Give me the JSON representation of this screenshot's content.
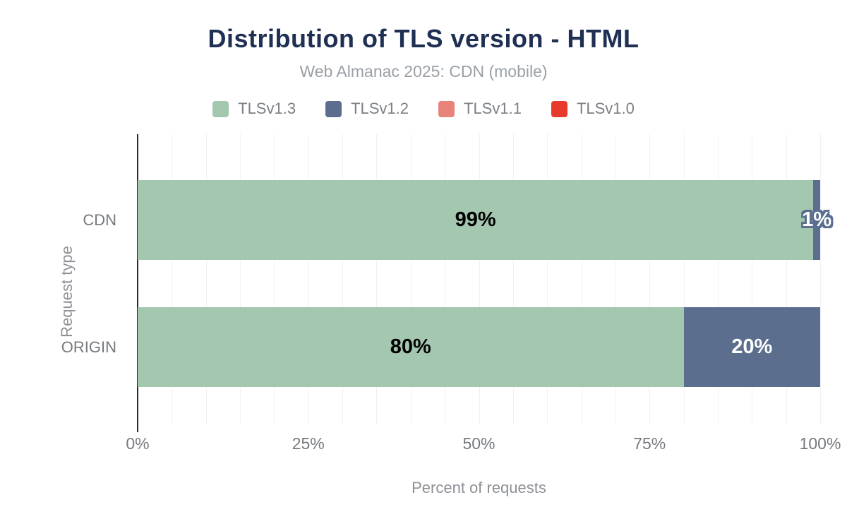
{
  "chart_data": {
    "type": "bar",
    "orientation": "horizontal",
    "stacked": true,
    "title": "Distribution of TLS version - HTML",
    "subtitle": "Web Almanac 2025: CDN (mobile)",
    "xlabel": "Percent of requests",
    "ylabel": "Request type",
    "categories": [
      "CDN",
      "ORIGIN"
    ],
    "series": [
      {
        "name": "TLSv1.3",
        "color": "#a4c7b0",
        "values": [
          99,
          80
        ]
      },
      {
        "name": "TLSv1.2",
        "color": "#5b6e8e",
        "values": [
          1,
          20
        ]
      },
      {
        "name": "TLSv1.1",
        "color": "#e8837a",
        "values": [
          0,
          0
        ]
      },
      {
        "name": "TLSv1.0",
        "color": "#e8392d",
        "values": [
          0,
          0
        ]
      }
    ],
    "xlim": [
      0,
      100
    ],
    "x_ticks": [
      {
        "label": "0%",
        "value": 0
      },
      {
        "label": "25%",
        "value": 25
      },
      {
        "label": "50%",
        "value": 50
      },
      {
        "label": "75%",
        "value": 75
      },
      {
        "label": "100%",
        "value": 100
      }
    ],
    "grid": {
      "vertical": true,
      "interval_pct": 5
    },
    "legend_position": "top",
    "data_labels": [
      [
        "99%",
        "1%"
      ],
      [
        "80%",
        "20%"
      ]
    ],
    "data_label_format": "{value}%"
  },
  "style_colors": {
    "title": "#1f3054",
    "subtitle": "#9aa0a6",
    "axis_text": "#75797e",
    "axis_title_text": "#8d9196",
    "gridline": "#f0f1f2",
    "axis_line": "#2a2a2a",
    "label_on_tlsv13": "#000000",
    "label_on_tlsv12": "#ffffff",
    "tiny_label_outline": "#5b6e8e",
    "background": "#ffffff"
  }
}
